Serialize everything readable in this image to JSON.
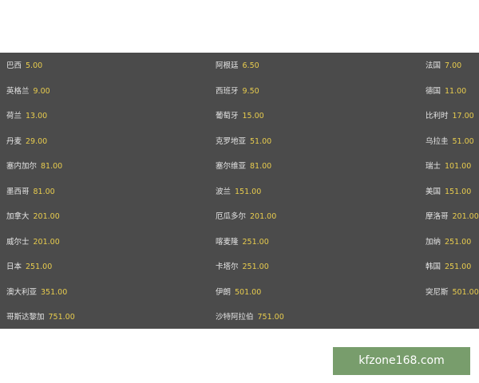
{
  "odds_table": {
    "rows": [
      [
        {
          "name": "巴西",
          "odds": "5.00"
        },
        {
          "name": "阿根廷",
          "odds": "6.50"
        },
        {
          "name": "法国",
          "odds": "7.00"
        }
      ],
      [
        {
          "name": "英格兰",
          "odds": "9.00"
        },
        {
          "name": "西班牙",
          "odds": "9.50"
        },
        {
          "name": "德国",
          "odds": "11.00"
        }
      ],
      [
        {
          "name": "荷兰",
          "odds": "13.00"
        },
        {
          "name": "葡萄牙",
          "odds": "15.00"
        },
        {
          "name": "比利时",
          "odds": "17.00"
        }
      ],
      [
        {
          "name": "丹麦",
          "odds": "29.00"
        },
        {
          "name": "克罗地亚",
          "odds": "51.00"
        },
        {
          "name": "乌拉圭",
          "odds": "51.00"
        }
      ],
      [
        {
          "name": "塞内加尔",
          "odds": "81.00"
        },
        {
          "name": "塞尔维亚",
          "odds": "81.00"
        },
        {
          "name": "瑞士",
          "odds": "101.00"
        }
      ],
      [
        {
          "name": "墨西哥",
          "odds": "81.00"
        },
        {
          "name": "波兰",
          "odds": "151.00"
        },
        {
          "name": "美国",
          "odds": "151.00"
        }
      ],
      [
        {
          "name": "加拿大",
          "odds": "201.00"
        },
        {
          "name": "厄瓜多尔",
          "odds": "201.00"
        },
        {
          "name": "摩洛哥",
          "odds": "201.00"
        }
      ],
      [
        {
          "name": "威尔士",
          "odds": "201.00"
        },
        {
          "name": "喀麦隆",
          "odds": "251.00"
        },
        {
          "name": "加纳",
          "odds": "251.00"
        }
      ],
      [
        {
          "name": "日本",
          "odds": "251.00"
        },
        {
          "name": "卡塔尔",
          "odds": "251.00"
        },
        {
          "name": "韩国",
          "odds": "251.00"
        }
      ],
      [
        {
          "name": "澳大利亚",
          "odds": "351.00"
        },
        {
          "name": "伊朗",
          "odds": "501.00"
        },
        {
          "name": "突尼斯",
          "odds": "501.00"
        }
      ],
      [
        {
          "name": "哥斯达黎加",
          "odds": "751.00"
        },
        {
          "name": "沙特阿拉伯",
          "odds": "751.00"
        }
      ]
    ]
  },
  "watermark": {
    "text": "kfzone168.com"
  },
  "colors": {
    "panel": "#4b4b4b",
    "name_text": "#e4e4e4",
    "odds_text": "#e8cc4e",
    "watermark_bg": "#789d6c"
  }
}
